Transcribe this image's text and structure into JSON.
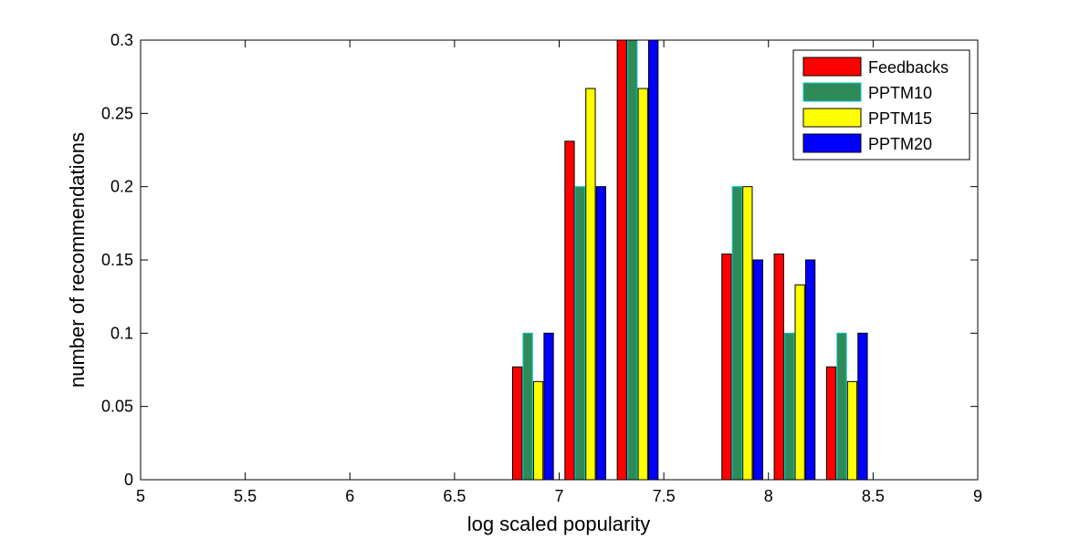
{
  "chart_data": {
    "type": "bar",
    "xlabel": "log scaled popularity",
    "ylabel": "number of recommendations",
    "xlim": [
      5,
      9
    ],
    "ylim": [
      0,
      0.3
    ],
    "x_ticks": [
      "5",
      "5.5",
      "6",
      "6.5",
      "7",
      "7.5",
      "8",
      "8.5",
      "9"
    ],
    "y_ticks": [
      "0",
      "0.05",
      "0.1",
      "0.15",
      "0.2",
      "0.25",
      "0.3"
    ],
    "legend_position": "top-right",
    "grid": false,
    "x": [
      5.125,
      5.375,
      5.625,
      5.875,
      6.125,
      6.375,
      6.625,
      6.875,
      7.125,
      7.375,
      7.625,
      7.875,
      8.125,
      8.375,
      8.625,
      8.875
    ],
    "series": [
      {
        "name": "Feedbacks",
        "color": "#ff0000",
        "values": [
          0,
          0,
          0,
          0,
          0,
          0,
          0,
          0.077,
          0.231,
          0.3,
          0,
          0.154,
          0.154,
          0.077,
          0,
          0
        ]
      },
      {
        "name": "PPTM10",
        "color": "#2e8b57",
        "values": [
          0,
          0,
          0,
          0,
          0,
          0,
          0,
          0.1,
          0.2,
          0.3,
          0,
          0.2,
          0.1,
          0.1,
          0,
          0
        ]
      },
      {
        "name": "PPTM15",
        "color": "#ffff00",
        "values": [
          0,
          0,
          0,
          0,
          0,
          0,
          0,
          0.067,
          0.267,
          0.267,
          0,
          0.2,
          0.133,
          0.067,
          0,
          0
        ]
      },
      {
        "name": "PPTM20",
        "color": "#0000ff",
        "values": [
          0,
          0,
          0,
          0,
          0,
          0,
          0,
          0.1,
          0.2,
          0.3,
          0,
          0.15,
          0.15,
          0.1,
          0,
          0
        ]
      }
    ]
  }
}
